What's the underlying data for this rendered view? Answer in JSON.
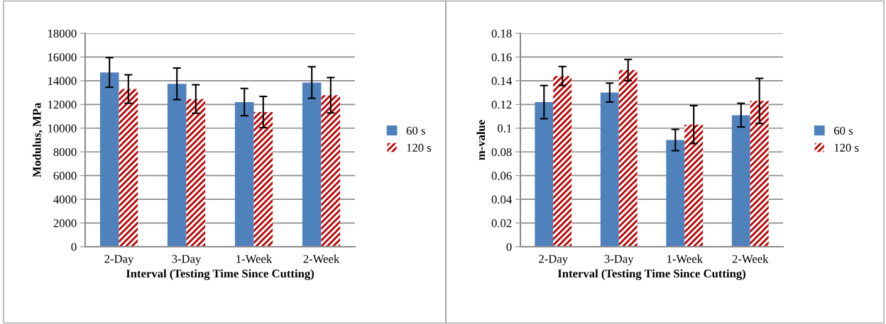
{
  "chart_data": [
    {
      "type": "bar",
      "ylabel": "Modulus, MPa",
      "xlabel": "Interval (Testing Time Since Cutting)",
      "categories": [
        "2-Day",
        "3-Day",
        "1-Week",
        "2-Week"
      ],
      "series": [
        {
          "name": "60 s",
          "color": "#4f81bd",
          "values": [
            14700,
            13740,
            12200,
            13850
          ],
          "errors": [
            1250,
            1330,
            1150,
            1330
          ]
        },
        {
          "name": "120 s",
          "color": "#c00000",
          "values": [
            13300,
            12460,
            11360,
            12780
          ],
          "errors": [
            1200,
            1200,
            1320,
            1490
          ]
        }
      ],
      "ylim": [
        0,
        18000
      ],
      "yticks": [
        0,
        2000,
        4000,
        6000,
        8000,
        10000,
        12000,
        14000,
        16000,
        18000
      ],
      "grid": "y",
      "legend": "right"
    },
    {
      "type": "bar",
      "ylabel": "m-value",
      "xlabel": "Interval (Testing Time Since Cutting)",
      "categories": [
        "2-Day",
        "3-Day",
        "1-Week",
        "2-Week"
      ],
      "series": [
        {
          "name": "60 s",
          "color": "#4f81bd",
          "values": [
            0.122,
            0.13,
            0.09,
            0.111
          ],
          "errors": [
            0.014,
            0.008,
            0.009,
            0.01
          ]
        },
        {
          "name": "120 s",
          "color": "#c00000",
          "values": [
            0.144,
            0.149,
            0.103,
            0.123
          ],
          "errors": [
            0.008,
            0.009,
            0.016,
            0.019
          ]
        }
      ],
      "ylim": [
        0,
        0.18
      ],
      "yticks": [
        0,
        {
          "value": 0.02,
          "label": "0.02"
        },
        {
          "value": 0.04,
          "label": "0.04"
        },
        {
          "value": 0.06,
          "label": "0.06"
        },
        {
          "value": 0.08,
          "label": "0.08"
        },
        {
          "value": 0.1,
          "label": "0.1"
        },
        {
          "value": 0.12,
          "label": "0.12"
        },
        {
          "value": 0.14,
          "label": "0.14"
        },
        {
          "value": 0.16,
          "label": "0.16"
        },
        {
          "value": 0.18,
          "label": "0.18"
        }
      ],
      "grid": "y",
      "legend": "right"
    }
  ]
}
